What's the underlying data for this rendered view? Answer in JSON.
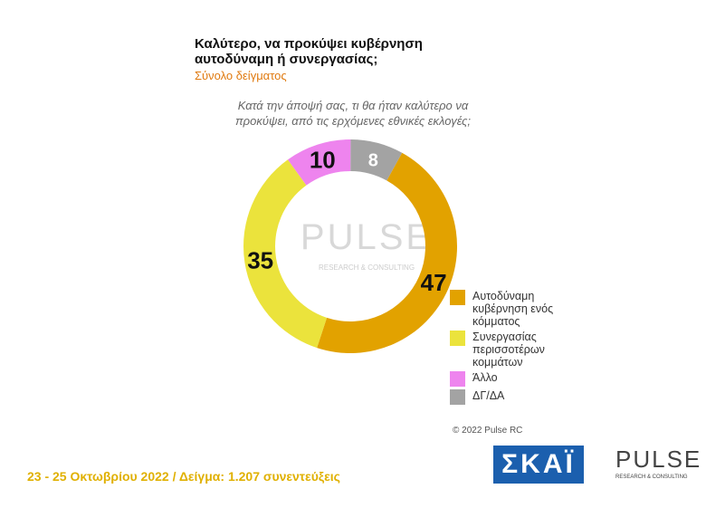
{
  "chart_data": {
    "type": "donut",
    "title_lines": [
      "Καλύτερο, να προκύψει κυβέρνηση",
      "αυτοδύναμη ή συνεργασίας;"
    ],
    "subtitle": "Σύνολο δείγματος",
    "question": "Κατά την άποψή σας, τι θα ήταν καλύτερο να προκύψει, από τις ερχόμενες εθνικές εκλογές;",
    "categories": [
      "Αυτοδύναμη κυβέρνηση ενός κόμματος",
      "Συνεργασίας περισσοτέρων κομμάτων",
      "Άλλο",
      "ΔΓ/ΔΑ"
    ],
    "values": [
      47,
      35,
      10,
      8
    ],
    "colors": [
      "#e2a200",
      "#ebe33c",
      "#ee84ee",
      "#a3a3a3"
    ],
    "watermark": "PULSE",
    "watermark_sub": "RESEARCH & CONSULTING"
  },
  "footer": {
    "fieldwork": "23 - 25 Οκτωβρίου 2022 / Δείγμα: 1.207 συνεντεύξεις",
    "copyright": "© 2022 Pulse RC",
    "logo_skai": "ΣΚΑΪ",
    "logo_pulse": "PULSE",
    "logo_pulse_sub": "RESEARCH & CONSULTING"
  }
}
